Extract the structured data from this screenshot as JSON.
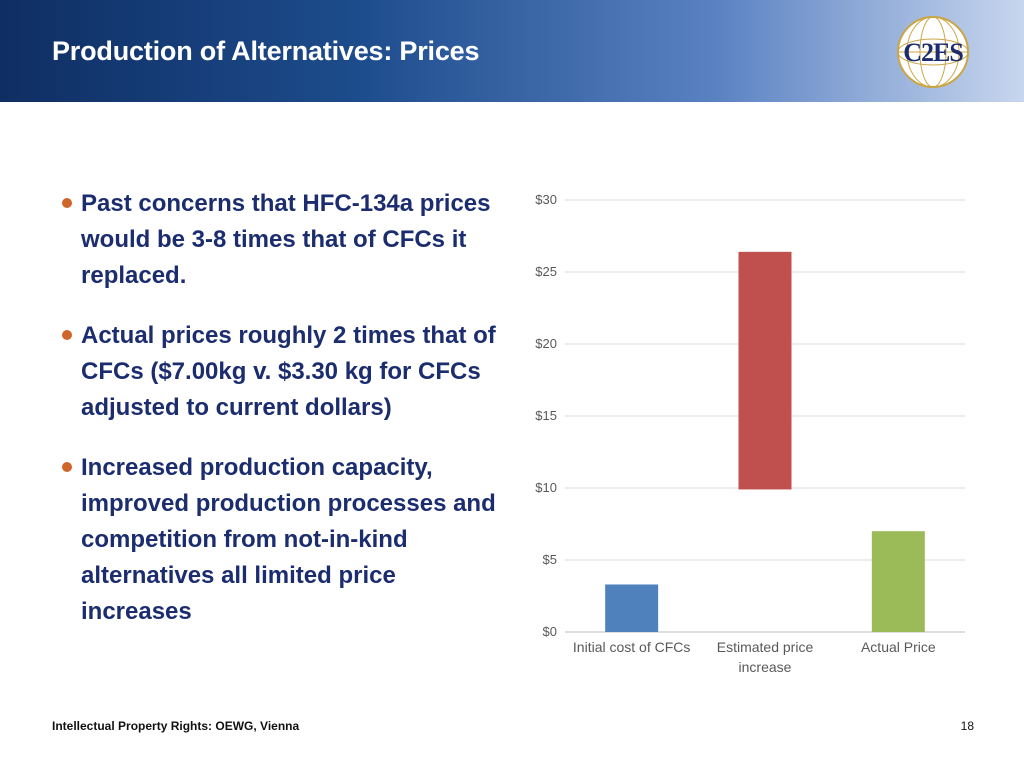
{
  "slide": {
    "title": "Production of Alternatives: Prices",
    "logo_text": "C2ES",
    "bullets": [
      "Past concerns that HFC-134a prices would be 3-8 times that of CFCs it replaced.",
      "Actual prices roughly 2 times that of CFCs ($7.00kg v. $3.30 kg for CFCs adjusted to current dollars)",
      "Increased production capacity, improved production processes and competition from not-in-kind alternatives all limited price increases"
    ],
    "footer": "Intellectual Property Rights: OEWG, Vienna",
    "page_number": "18"
  },
  "colors": {
    "bullet_dot": "#d0652c",
    "bullet_text": "#1b2d6e",
    "header_dark": "#0f2e63",
    "header_light": "#c8d6ee"
  },
  "chart_data": {
    "type": "bar",
    "subtype": "floating",
    "categories": [
      "Initial cost of CFCs",
      "Estimated price increase",
      "Actual Price"
    ],
    "ranges": [
      [
        0,
        3.3
      ],
      [
        9.9,
        26.4
      ],
      [
        0,
        7.0
      ]
    ],
    "colors": [
      "#4f81bd",
      "#c0504d",
      "#9bbb59"
    ],
    "ylim": [
      0,
      30
    ],
    "yticks": [
      0,
      5,
      10,
      15,
      20,
      25,
      30
    ],
    "ytick_labels": [
      "$0",
      "$5",
      "$10",
      "$15",
      "$20",
      "$25",
      "$30"
    ],
    "grid": true,
    "legend": "none",
    "title": "",
    "xlabel": "",
    "ylabel": ""
  }
}
